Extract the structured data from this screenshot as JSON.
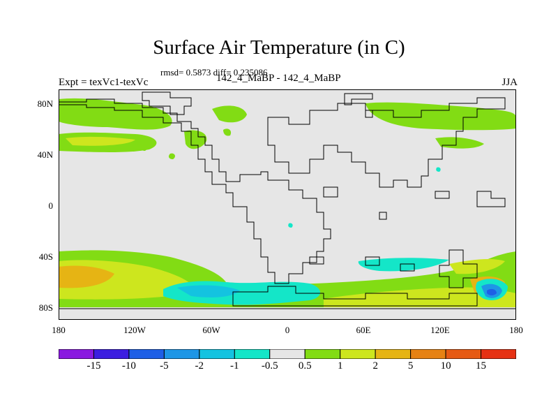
{
  "map": {
    "title": "Surface Air Temperature (in C)",
    "stats": "rmsd= 0.5873 diff= 0.235086",
    "experiment": "Expt = texVc1-texVc",
    "subtitle": "142_4_MaBP - 142_4_MaBP",
    "season": "JJA",
    "lat_ticks": [
      "80N",
      "40N",
      "0",
      "40S",
      "80S"
    ],
    "lon_ticks": [
      "180",
      "120W",
      "60W",
      "0",
      "60E",
      "120E",
      "180"
    ],
    "background_color": "#e6e6e6"
  },
  "colorbar": {
    "labels": [
      "-15",
      "-10",
      "-5",
      "-2",
      "-1",
      "-0.5",
      "0.5",
      "1",
      "2",
      "5",
      "10",
      "15"
    ],
    "colors": [
      "#8a1ae0",
      "#3c1ee0",
      "#1e5fe6",
      "#1e96e6",
      "#14c3e0",
      "#14e6c8",
      "#e6e6e6",
      "#82dc14",
      "#cde61e",
      "#e6b414",
      "#e68214",
      "#e65a14",
      "#e63214"
    ]
  }
}
